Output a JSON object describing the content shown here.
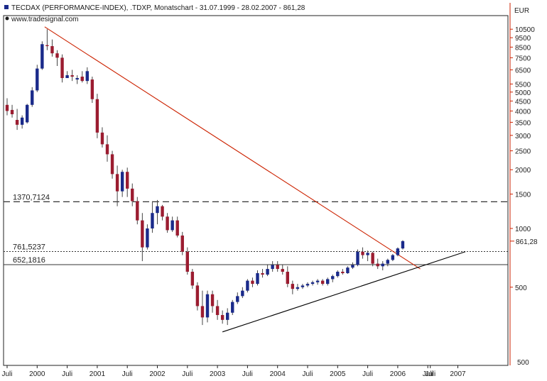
{
  "header": {
    "title": "TECDAX (PERFORMANCE-INDEX), .TDXP, Monatschart - 31.07.1999 - 28.02.2007 - 861,28",
    "source": "www.tradesignal.com",
    "currency": "EUR"
  },
  "chart_data": {
    "type": "candlestick",
    "title": "TECDAX (PERFORMANCE-INDEX), .TDXP, Monatschart - 31.07.1999 - 28.02.2007 - 861,28",
    "y_scale": "log",
    "ylim": [
      250,
      14000
    ],
    "y_unit": "EUR",
    "y_ticks": [
      10500,
      9500,
      8500,
      7500,
      6500,
      5500,
      5000,
      4500,
      4000,
      3500,
      3000,
      2500,
      2000,
      1500,
      1000,
      500
    ],
    "y_tick_labels": [
      "10500",
      "9500",
      "8500",
      "7500",
      "6500",
      "5500",
      "5000",
      "4500",
      "4000",
      "3500",
      "3000",
      "2500",
      "2000",
      "1500",
      "1000",
      "500"
    ],
    "y_bottom_label": "500",
    "x_ticks": [
      {
        "label": "Juli",
        "month": 0
      },
      {
        "label": "2000",
        "month": 6
      },
      {
        "label": "Juli",
        "month": 12
      },
      {
        "label": "2001",
        "month": 18
      },
      {
        "label": "Juli",
        "month": 24
      },
      {
        "label": "2002",
        "month": 30
      },
      {
        "label": "Juli",
        "month": 36
      },
      {
        "label": "2003",
        "month": 42
      },
      {
        "label": "Juli",
        "month": 48
      },
      {
        "label": "2004",
        "month": 54
      },
      {
        "label": "Juli",
        "month": 60
      },
      {
        "label": "2005",
        "month": 66
      },
      {
        "label": "Juli",
        "month": 72
      },
      {
        "label": "2006",
        "month": 78
      },
      {
        "label": "Juli",
        "month": 84
      },
      {
        "label": "Juli",
        "month": 84.5
      },
      {
        "label": "2007",
        "month": 90
      }
    ],
    "levels": [
      {
        "value": 1370.7124,
        "label": "1370,7124",
        "style": "dashed"
      },
      {
        "value": 761.5237,
        "label": "761,5237",
        "style": "dotted"
      },
      {
        "value": 652.1816,
        "label": "652,1816",
        "style": "solid"
      }
    ],
    "last_price": {
      "value": 861.28,
      "label": "861,28"
    },
    "trendlines": [
      {
        "color": "#cc2200",
        "from": {
          "month": 7.5,
          "value": 10800
        },
        "to": {
          "month": 82.5,
          "value": 620
        }
      },
      {
        "color": "#000000",
        "from": {
          "month": 43,
          "value": 295
        },
        "to": {
          "month": 91.5,
          "value": 760
        }
      }
    ],
    "colors": {
      "up": "#1a2a8a",
      "down": "#9b1c30",
      "wick": "#444444"
    },
    "candles": [
      {
        "open": 4300,
        "high": 4650,
        "low": 3800,
        "close": 4000
      },
      {
        "open": 4050,
        "high": 4300,
        "low": 3700,
        "close": 3850
      },
      {
        "open": 3600,
        "high": 4100,
        "low": 3200,
        "close": 3400
      },
      {
        "open": 3400,
        "high": 3800,
        "low": 3250,
        "close": 3700
      },
      {
        "open": 3500,
        "high": 4350,
        "low": 3450,
        "close": 4300
      },
      {
        "open": 4300,
        "high": 5300,
        "low": 4200,
        "close": 5100
      },
      {
        "open": 5100,
        "high": 6900,
        "low": 5000,
        "close": 6600
      },
      {
        "open": 6600,
        "high": 9100,
        "low": 6500,
        "close": 8800
      },
      {
        "open": 8700,
        "high": 10500,
        "low": 8200,
        "close": 8600
      },
      {
        "open": 8600,
        "high": 9300,
        "low": 7600,
        "close": 7900
      },
      {
        "open": 7900,
        "high": 8200,
        "low": 6800,
        "close": 7500
      },
      {
        "open": 7500,
        "high": 7800,
        "low": 5600,
        "close": 5900
      },
      {
        "open": 5900,
        "high": 6400,
        "low": 5900,
        "close": 6100
      },
      {
        "open": 6100,
        "high": 6500,
        "low": 5700,
        "close": 6000
      },
      {
        "open": 5800,
        "high": 6100,
        "low": 5500,
        "close": 5900
      },
      {
        "open": 6000,
        "high": 6400,
        "low": 5600,
        "close": 5700
      },
      {
        "open": 5700,
        "high": 6700,
        "low": 5500,
        "close": 6400
      },
      {
        "open": 5800,
        "high": 6000,
        "low": 4400,
        "close": 4600
      },
      {
        "open": 4600,
        "high": 4900,
        "low": 2900,
        "close": 3100
      },
      {
        "open": 3100,
        "high": 3300,
        "low": 2600,
        "close": 2700
      },
      {
        "open": 2700,
        "high": 3000,
        "low": 2200,
        "close": 2400
      },
      {
        "open": 2400,
        "high": 2500,
        "low": 1800,
        "close": 1900
      },
      {
        "open": 1900,
        "high": 2100,
        "low": 1300,
        "close": 1550
      },
      {
        "open": 1550,
        "high": 2000,
        "low": 1450,
        "close": 1950
      },
      {
        "open": 1950,
        "high": 2050,
        "low": 1450,
        "close": 1600
      },
      {
        "open": 1600,
        "high": 1700,
        "low": 1300,
        "close": 1380
      },
      {
        "open": 1380,
        "high": 1450,
        "low": 1050,
        "close": 1100
      },
      {
        "open": 1100,
        "high": 1200,
        "low": 680,
        "close": 800
      },
      {
        "open": 800,
        "high": 1050,
        "low": 780,
        "close": 1000
      },
      {
        "open": 1000,
        "high": 1380,
        "low": 950,
        "close": 1200
      },
      {
        "open": 1200,
        "high": 1400,
        "low": 1050,
        "close": 1300
      },
      {
        "open": 1300,
        "high": 1320,
        "low": 1100,
        "close": 1150
      },
      {
        "open": 1150,
        "high": 1200,
        "low": 950,
        "close": 980
      },
      {
        "open": 980,
        "high": 1150,
        "low": 960,
        "close": 1100
      },
      {
        "open": 1100,
        "high": 1150,
        "low": 900,
        "close": 920
      },
      {
        "open": 920,
        "high": 960,
        "low": 730,
        "close": 760
      },
      {
        "open": 760,
        "high": 800,
        "low": 580,
        "close": 600
      },
      {
        "open": 600,
        "high": 620,
        "low": 490,
        "close": 510
      },
      {
        "open": 510,
        "high": 530,
        "low": 380,
        "close": 400
      },
      {
        "open": 400,
        "high": 480,
        "low": 320,
        "close": 350
      },
      {
        "open": 350,
        "high": 480,
        "low": 330,
        "close": 460
      },
      {
        "open": 460,
        "high": 480,
        "low": 370,
        "close": 400
      },
      {
        "open": 400,
        "high": 430,
        "low": 340,
        "close": 360
      },
      {
        "open": 360,
        "high": 380,
        "low": 325,
        "close": 340
      },
      {
        "open": 340,
        "high": 390,
        "low": 320,
        "close": 370
      },
      {
        "open": 370,
        "high": 430,
        "low": 360,
        "close": 420
      },
      {
        "open": 420,
        "high": 470,
        "low": 410,
        "close": 450
      },
      {
        "open": 450,
        "high": 500,
        "low": 440,
        "close": 480
      },
      {
        "open": 480,
        "high": 550,
        "low": 470,
        "close": 540
      },
      {
        "open": 540,
        "high": 560,
        "low": 500,
        "close": 520
      },
      {
        "open": 520,
        "high": 610,
        "low": 510,
        "close": 590
      },
      {
        "open": 590,
        "high": 620,
        "low": 560,
        "close": 580
      },
      {
        "open": 580,
        "high": 650,
        "low": 570,
        "close": 620
      },
      {
        "open": 620,
        "high": 680,
        "low": 600,
        "close": 650
      },
      {
        "open": 650,
        "high": 680,
        "low": 600,
        "close": 620
      },
      {
        "open": 620,
        "high": 650,
        "low": 580,
        "close": 600
      },
      {
        "open": 600,
        "high": 640,
        "low": 500,
        "close": 520
      },
      {
        "open": 520,
        "high": 540,
        "low": 460,
        "close": 490
      },
      {
        "open": 490,
        "high": 520,
        "low": 480,
        "close": 500
      },
      {
        "open": 500,
        "high": 520,
        "low": 490,
        "close": 510
      },
      {
        "open": 510,
        "high": 530,
        "low": 500,
        "close": 520
      },
      {
        "open": 520,
        "high": 540,
        "low": 510,
        "close": 530
      },
      {
        "open": 530,
        "high": 550,
        "low": 515,
        "close": 540
      },
      {
        "open": 540,
        "high": 550,
        "low": 510,
        "close": 520
      },
      {
        "open": 520,
        "high": 560,
        "low": 510,
        "close": 550
      },
      {
        "open": 550,
        "high": 580,
        "low": 530,
        "close": 570
      },
      {
        "open": 570,
        "high": 610,
        "low": 560,
        "close": 600
      },
      {
        "open": 600,
        "high": 620,
        "low": 580,
        "close": 590
      },
      {
        "open": 590,
        "high": 640,
        "low": 585,
        "close": 630
      },
      {
        "open": 630,
        "high": 670,
        "low": 620,
        "close": 650
      },
      {
        "open": 650,
        "high": 780,
        "low": 640,
        "close": 760
      },
      {
        "open": 760,
        "high": 800,
        "low": 700,
        "close": 730
      },
      {
        "open": 730,
        "high": 770,
        "low": 680,
        "close": 750
      },
      {
        "open": 750,
        "high": 760,
        "low": 640,
        "close": 660
      },
      {
        "open": 660,
        "high": 700,
        "low": 620,
        "close": 640
      },
      {
        "open": 640,
        "high": 680,
        "low": 610,
        "close": 660
      },
      {
        "open": 660,
        "high": 700,
        "low": 640,
        "close": 690
      },
      {
        "open": 690,
        "high": 740,
        "low": 680,
        "close": 730
      },
      {
        "open": 730,
        "high": 800,
        "low": 720,
        "close": 790
      },
      {
        "open": 790,
        "high": 870,
        "low": 780,
        "close": 861.28
      }
    ]
  }
}
